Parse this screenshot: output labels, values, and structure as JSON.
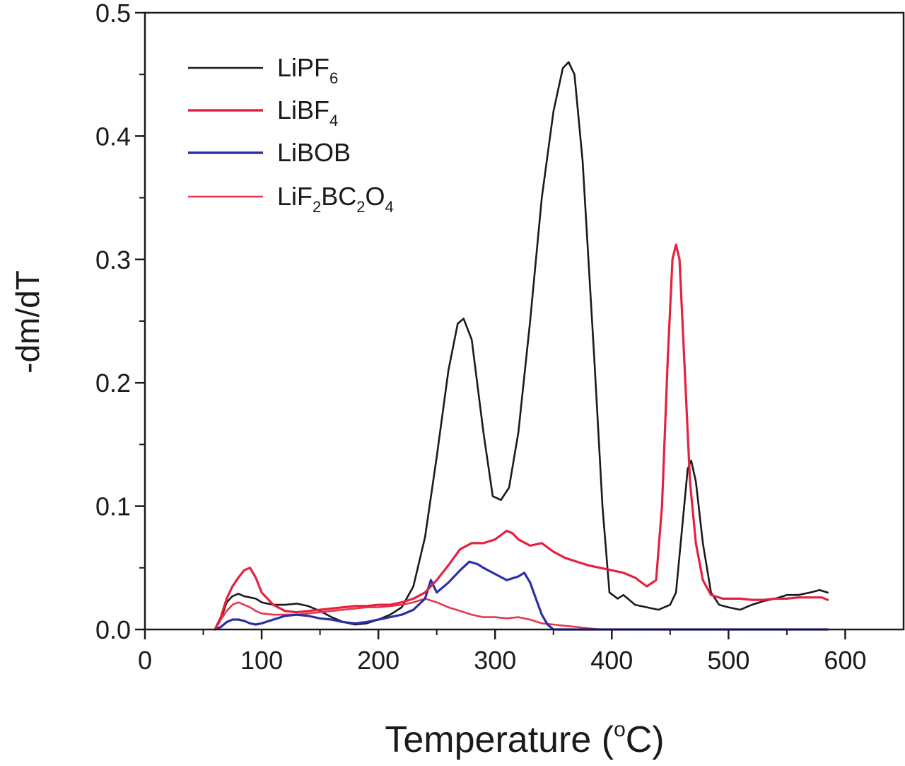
{
  "chart_data": {
    "type": "line",
    "xlabel": "Temperature (",
    "xlabel_unit_sup": "o",
    "xlabel_unit": "C)",
    "ylabel": "-dm/dT",
    "xlim": [
      0,
      650
    ],
    "ylim": [
      0,
      0.5
    ],
    "x_ticks": [
      0,
      100,
      200,
      300,
      400,
      500,
      600
    ],
    "x_tick_labels": [
      "0",
      "100",
      "200",
      "300",
      "400",
      "500",
      "600"
    ],
    "y_ticks": [
      0,
      0.1,
      0.2,
      0.3,
      0.4,
      0.5
    ],
    "y_tick_labels": [
      "0.0",
      "0.1",
      "0.2",
      "0.3",
      "0.4",
      "0.5"
    ],
    "grid": false,
    "legend_position": "top-left",
    "series": [
      {
        "name": "LiPF6",
        "legend_label": {
          "main": "LiPF",
          "sub": "6"
        },
        "color": "#1a1a1a",
        "legend_style": "thin",
        "points": [
          [
            60,
            0.0
          ],
          [
            65,
            0.008
          ],
          [
            70,
            0.022
          ],
          [
            75,
            0.027
          ],
          [
            80,
            0.029
          ],
          [
            85,
            0.027
          ],
          [
            90,
            0.026
          ],
          [
            95,
            0.025
          ],
          [
            100,
            0.022
          ],
          [
            110,
            0.02
          ],
          [
            120,
            0.02
          ],
          [
            130,
            0.021
          ],
          [
            140,
            0.019
          ],
          [
            150,
            0.015
          ],
          [
            160,
            0.01
          ],
          [
            170,
            0.006
          ],
          [
            180,
            0.004
          ],
          [
            190,
            0.005
          ],
          [
            200,
            0.008
          ],
          [
            210,
            0.012
          ],
          [
            220,
            0.018
          ],
          [
            230,
            0.035
          ],
          [
            240,
            0.075
          ],
          [
            250,
            0.14
          ],
          [
            260,
            0.21
          ],
          [
            268,
            0.248
          ],
          [
            273,
            0.252
          ],
          [
            280,
            0.235
          ],
          [
            290,
            0.16
          ],
          [
            298,
            0.108
          ],
          [
            305,
            0.105
          ],
          [
            312,
            0.115
          ],
          [
            320,
            0.16
          ],
          [
            330,
            0.25
          ],
          [
            340,
            0.35
          ],
          [
            350,
            0.42
          ],
          [
            358,
            0.455
          ],
          [
            363,
            0.46
          ],
          [
            368,
            0.45
          ],
          [
            375,
            0.38
          ],
          [
            385,
            0.22
          ],
          [
            392,
            0.1
          ],
          [
            398,
            0.03
          ],
          [
            405,
            0.025
          ],
          [
            410,
            0.028
          ],
          [
            420,
            0.02
          ],
          [
            430,
            0.018
          ],
          [
            440,
            0.016
          ],
          [
            445,
            0.018
          ],
          [
            450,
            0.02
          ],
          [
            455,
            0.03
          ],
          [
            460,
            0.08
          ],
          [
            465,
            0.13
          ],
          [
            468,
            0.137
          ],
          [
            472,
            0.12
          ],
          [
            478,
            0.07
          ],
          [
            485,
            0.03
          ],
          [
            492,
            0.02
          ],
          [
            500,
            0.018
          ],
          [
            510,
            0.016
          ],
          [
            520,
            0.02
          ],
          [
            530,
            0.023
          ],
          [
            540,
            0.025
          ],
          [
            550,
            0.028
          ],
          [
            560,
            0.028
          ],
          [
            570,
            0.03
          ],
          [
            578,
            0.032
          ],
          [
            585,
            0.03
          ]
        ]
      },
      {
        "name": "LiBF4",
        "legend_label": {
          "main": "LiBF",
          "sub": "4"
        },
        "color": "#e4213f",
        "legend_style": "thick",
        "points": [
          [
            60,
            0.0
          ],
          [
            65,
            0.01
          ],
          [
            70,
            0.025
          ],
          [
            75,
            0.035
          ],
          [
            80,
            0.042
          ],
          [
            85,
            0.048
          ],
          [
            90,
            0.05
          ],
          [
            95,
            0.042
          ],
          [
            100,
            0.03
          ],
          [
            110,
            0.02
          ],
          [
            120,
            0.015
          ],
          [
            130,
            0.014
          ],
          [
            140,
            0.015
          ],
          [
            150,
            0.016
          ],
          [
            160,
            0.017
          ],
          [
            170,
            0.018
          ],
          [
            180,
            0.019
          ],
          [
            190,
            0.019
          ],
          [
            200,
            0.02
          ],
          [
            210,
            0.02
          ],
          [
            220,
            0.022
          ],
          [
            230,
            0.025
          ],
          [
            240,
            0.03
          ],
          [
            250,
            0.04
          ],
          [
            260,
            0.052
          ],
          [
            270,
            0.065
          ],
          [
            280,
            0.07
          ],
          [
            290,
            0.07
          ],
          [
            300,
            0.073
          ],
          [
            310,
            0.08
          ],
          [
            315,
            0.078
          ],
          [
            320,
            0.073
          ],
          [
            330,
            0.068
          ],
          [
            340,
            0.07
          ],
          [
            350,
            0.063
          ],
          [
            360,
            0.058
          ],
          [
            370,
            0.055
          ],
          [
            380,
            0.052
          ],
          [
            390,
            0.05
          ],
          [
            400,
            0.048
          ],
          [
            410,
            0.046
          ],
          [
            420,
            0.042
          ],
          [
            430,
            0.035
          ],
          [
            438,
            0.04
          ],
          [
            443,
            0.1
          ],
          [
            448,
            0.22
          ],
          [
            452,
            0.3
          ],
          [
            455,
            0.312
          ],
          [
            458,
            0.3
          ],
          [
            462,
            0.22
          ],
          [
            467,
            0.12
          ],
          [
            472,
            0.07
          ],
          [
            478,
            0.04
          ],
          [
            485,
            0.028
          ],
          [
            495,
            0.025
          ],
          [
            510,
            0.025
          ],
          [
            520,
            0.024
          ],
          [
            530,
            0.024
          ],
          [
            540,
            0.025
          ],
          [
            550,
            0.025
          ],
          [
            560,
            0.026
          ],
          [
            570,
            0.026
          ],
          [
            580,
            0.026
          ],
          [
            585,
            0.024
          ]
        ]
      },
      {
        "name": "LiBOB",
        "legend_label": {
          "main": "LiBOB",
          "sub": ""
        },
        "color": "#2b2fa8",
        "legend_style": "thick",
        "points": [
          [
            60,
            0.0
          ],
          [
            65,
            0.002
          ],
          [
            70,
            0.006
          ],
          [
            75,
            0.008
          ],
          [
            80,
            0.008
          ],
          [
            85,
            0.007
          ],
          [
            90,
            0.005
          ],
          [
            95,
            0.004
          ],
          [
            100,
            0.005
          ],
          [
            110,
            0.008
          ],
          [
            120,
            0.011
          ],
          [
            130,
            0.012
          ],
          [
            140,
            0.011
          ],
          [
            150,
            0.009
          ],
          [
            160,
            0.008
          ],
          [
            170,
            0.006
          ],
          [
            180,
            0.005
          ],
          [
            190,
            0.006
          ],
          [
            200,
            0.008
          ],
          [
            210,
            0.01
          ],
          [
            220,
            0.012
          ],
          [
            230,
            0.016
          ],
          [
            240,
            0.025
          ],
          [
            245,
            0.04
          ],
          [
            250,
            0.03
          ],
          [
            260,
            0.038
          ],
          [
            270,
            0.048
          ],
          [
            278,
            0.055
          ],
          [
            285,
            0.053
          ],
          [
            290,
            0.05
          ],
          [
            300,
            0.045
          ],
          [
            310,
            0.04
          ],
          [
            320,
            0.043
          ],
          [
            325,
            0.046
          ],
          [
            330,
            0.038
          ],
          [
            335,
            0.025
          ],
          [
            340,
            0.012
          ],
          [
            345,
            0.004
          ],
          [
            350,
            0.0
          ],
          [
            360,
            0.0
          ],
          [
            400,
            0.0
          ],
          [
            450,
            0.0
          ],
          [
            500,
            0.0
          ],
          [
            550,
            0.0
          ],
          [
            585,
            0.0
          ]
        ]
      },
      {
        "name": "LiF2BC2O4",
        "legend_label": {
          "main": "LiF2BC2O4",
          "sub": ""
        },
        "legend_parts": [
          [
            "LiF",
            ""
          ],
          [
            "2",
            "sub"
          ],
          [
            "BC",
            ""
          ],
          [
            "2",
            "sub"
          ],
          [
            "O",
            ""
          ],
          [
            "4",
            "sub"
          ]
        ],
        "color": "#e8364f",
        "legend_style": "thin",
        "points": [
          [
            60,
            0.0
          ],
          [
            65,
            0.008
          ],
          [
            70,
            0.015
          ],
          [
            75,
            0.02
          ],
          [
            80,
            0.022
          ],
          [
            85,
            0.02
          ],
          [
            90,
            0.018
          ],
          [
            95,
            0.015
          ],
          [
            100,
            0.013
          ],
          [
            110,
            0.012
          ],
          [
            120,
            0.012
          ],
          [
            130,
            0.012
          ],
          [
            140,
            0.013
          ],
          [
            150,
            0.014
          ],
          [
            160,
            0.015
          ],
          [
            170,
            0.016
          ],
          [
            180,
            0.017
          ],
          [
            190,
            0.018
          ],
          [
            200,
            0.018
          ],
          [
            210,
            0.019
          ],
          [
            220,
            0.02
          ],
          [
            230,
            0.022
          ],
          [
            240,
            0.025
          ],
          [
            250,
            0.022
          ],
          [
            260,
            0.018
          ],
          [
            270,
            0.015
          ],
          [
            280,
            0.012
          ],
          [
            290,
            0.01
          ],
          [
            300,
            0.01
          ],
          [
            310,
            0.009
          ],
          [
            320,
            0.01
          ],
          [
            330,
            0.008
          ],
          [
            340,
            0.005
          ],
          [
            350,
            0.004
          ],
          [
            360,
            0.003
          ],
          [
            370,
            0.002
          ],
          [
            380,
            0.001
          ],
          [
            390,
            0.0
          ],
          [
            450,
            0.0
          ],
          [
            500,
            0.0
          ],
          [
            585,
            0.0
          ]
        ]
      }
    ]
  }
}
